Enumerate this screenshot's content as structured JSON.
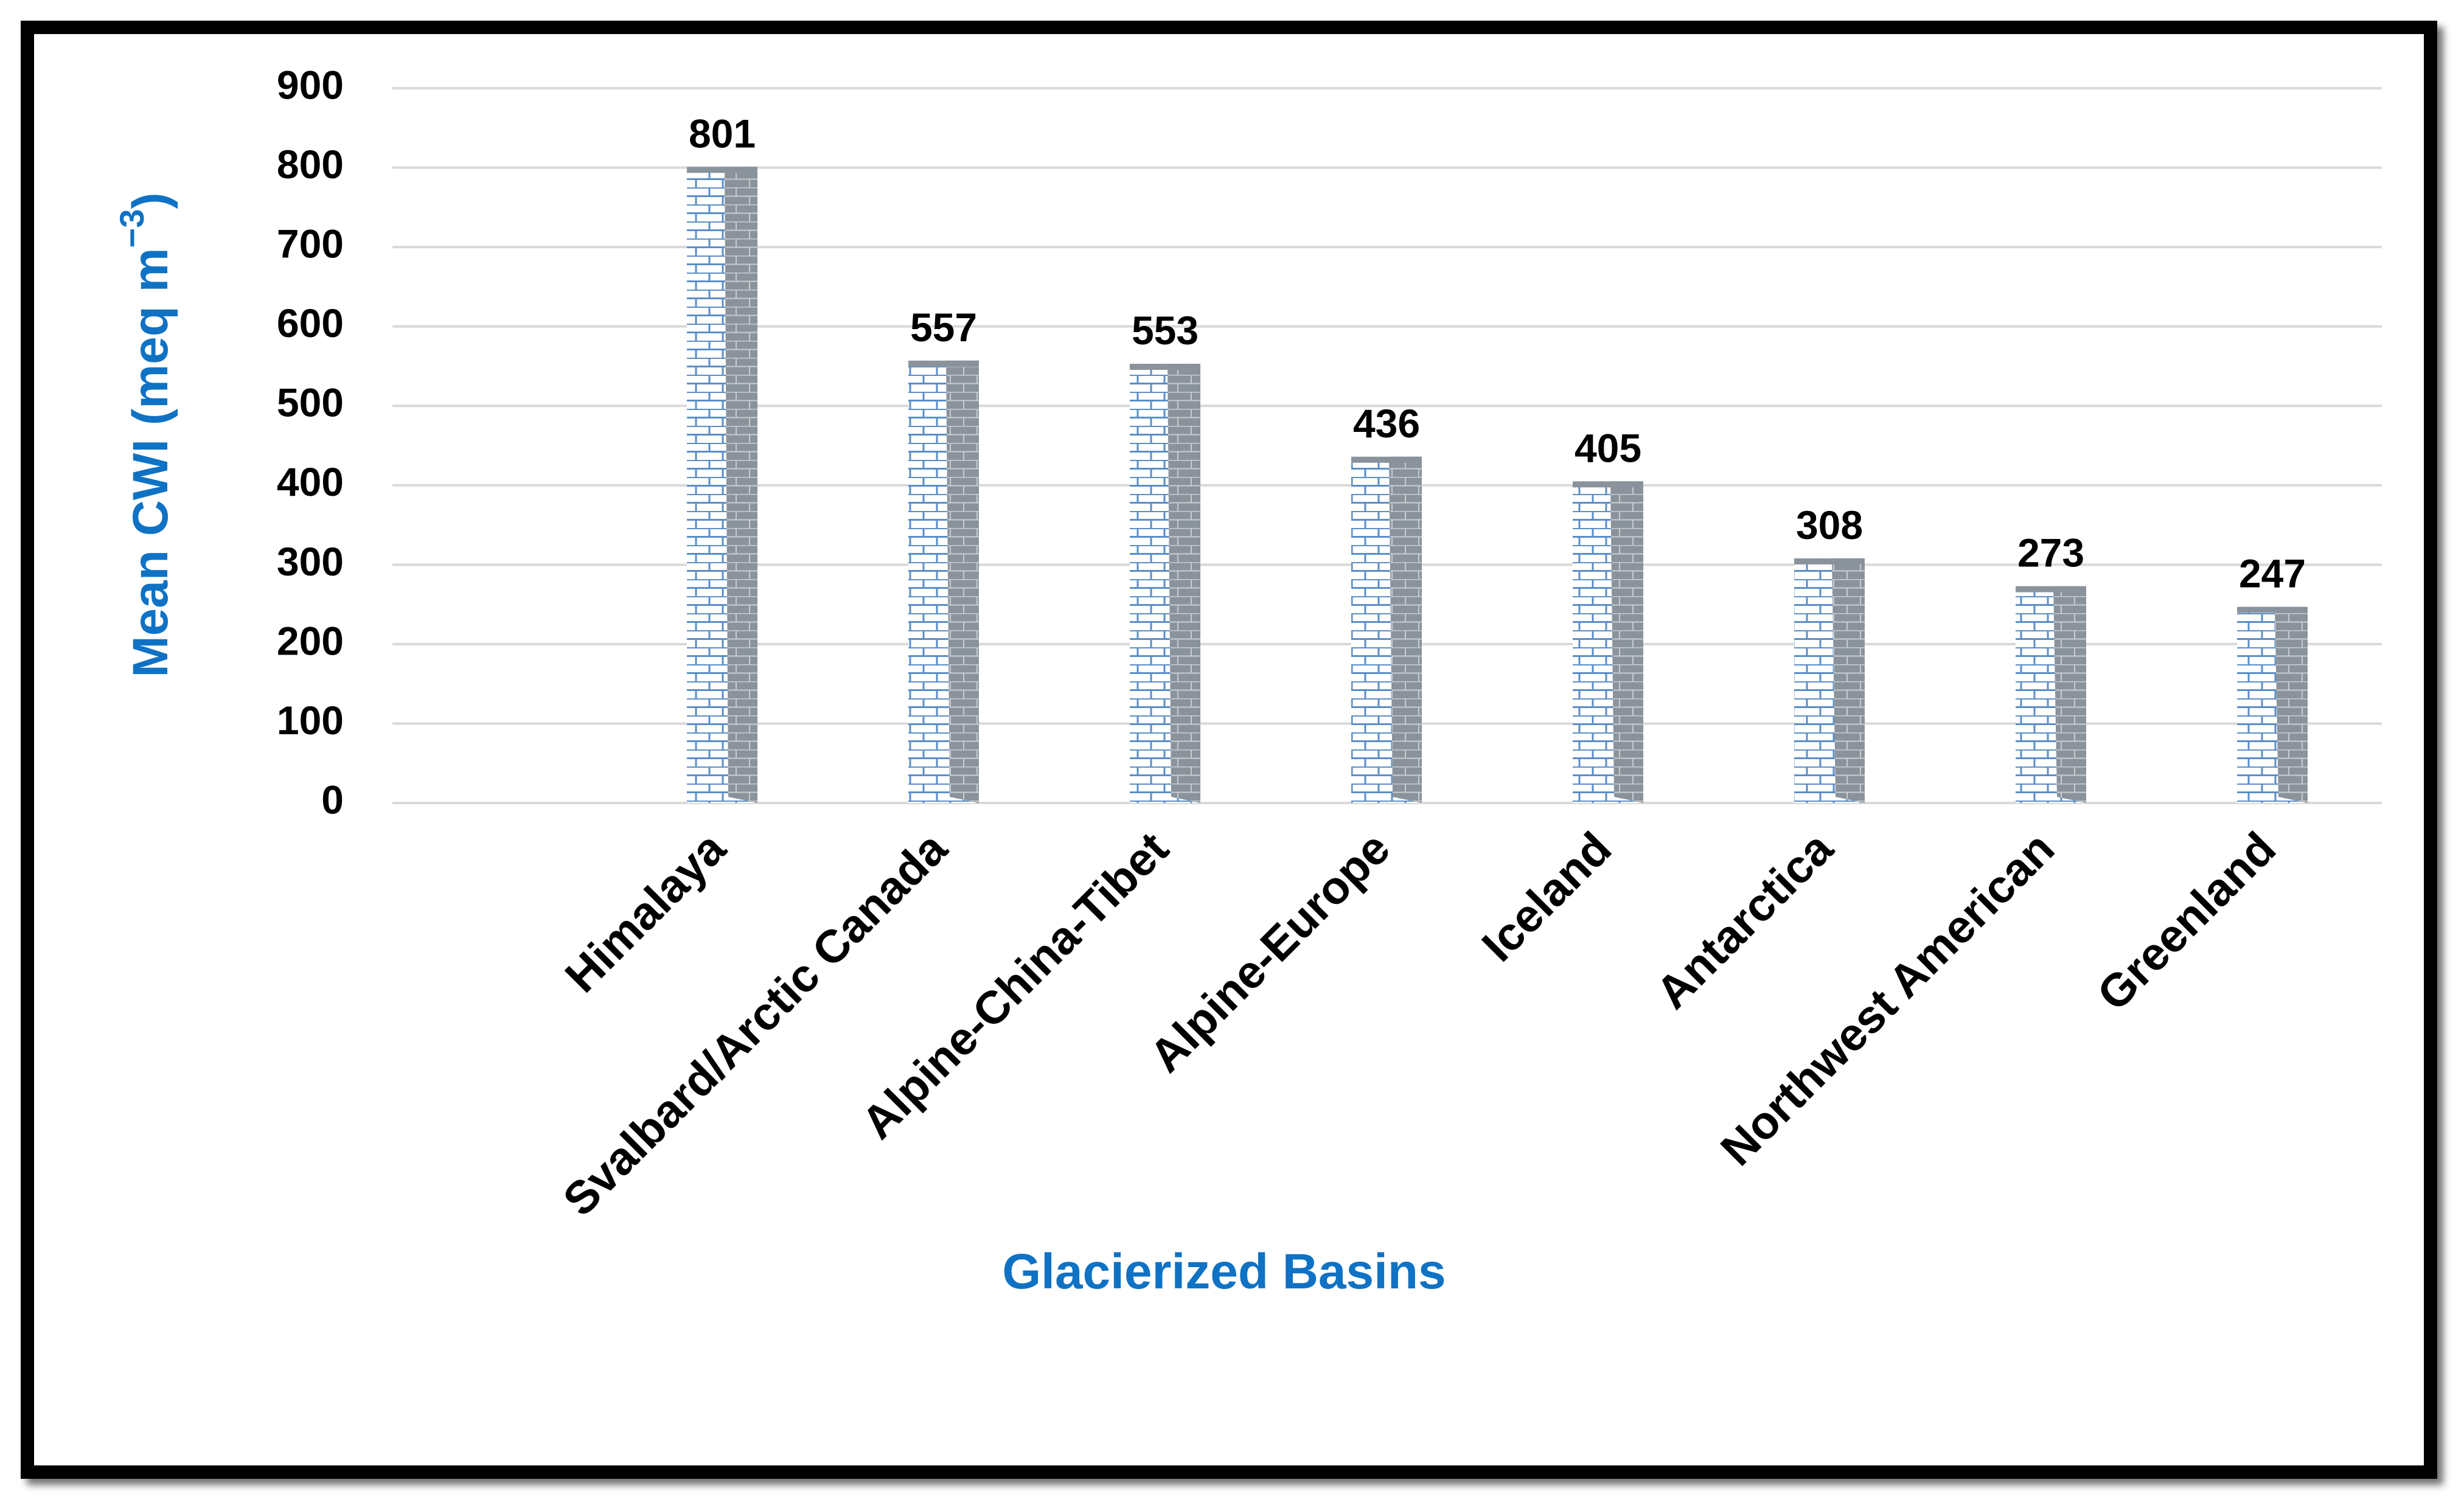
{
  "chart_data": {
    "type": "bar",
    "categories": [
      "Himalaya",
      "Svalbard/Arctic Canada",
      "Alpine-China-Tibet",
      "Alpine-Europe",
      "Iceland",
      "Antarctica",
      "Northwest American",
      "Greenland"
    ],
    "values": [
      801,
      557,
      553,
      436,
      405,
      308,
      273,
      247
    ],
    "xlabel": "Glacierized Basins",
    "ylabel": {
      "main": "Mean CWI (meq m",
      "superscript": "−3",
      "close": ")"
    },
    "ylim": [
      0,
      900
    ],
    "yticks": [
      0,
      100,
      200,
      300,
      400,
      500,
      600,
      700,
      800,
      900
    ],
    "grid": true,
    "data_labels": true,
    "colors": {
      "axis_title": "#0f72c4",
      "brick_front": "#ffffff",
      "brick_line": "#5b8ec7",
      "brick_shadow": "#8a939b",
      "gridline": "#d9d9d9",
      "frame": "#000000"
    }
  }
}
